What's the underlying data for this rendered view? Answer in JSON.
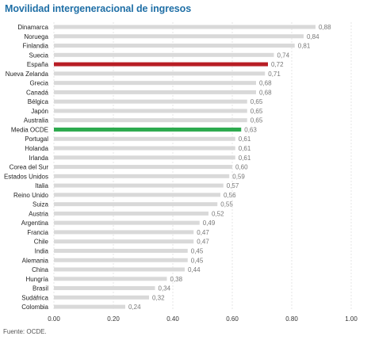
{
  "title": "Movilidad intergeneracional de ingresos",
  "source": "Fuente: OCDE.",
  "colors": {
    "bar": "#d9d9d9",
    "highlight_spain": "#b81e25",
    "highlight_oecd": "#2daa4e",
    "title": "#1f6fa6"
  },
  "chart_data": {
    "type": "bar",
    "orientation": "horizontal",
    "title": "Movilidad intergeneracional de ingresos",
    "xlabel": "",
    "ylabel": "",
    "xlim": [
      0,
      1.0
    ],
    "xticks": [
      "0.00",
      "0.20",
      "0.40",
      "0.60",
      "0.80",
      "1.00"
    ],
    "grid": true,
    "categories": [
      "Dinamarca",
      "Noruega",
      "Finlandia",
      "Suecia",
      "España",
      "Nueva Zelanda",
      "Grecia",
      "Canadá",
      "Bélgica",
      "Japón",
      "Australia",
      "Media OCDE",
      "Portugal",
      "Holanda",
      "Irlanda",
      "Corea del Sur",
      "Estados Unidos",
      "Italia",
      "Reino Unido",
      "Suiza",
      "Austria",
      "Argentina",
      "Francia",
      "Chile",
      "India",
      "Alemania",
      "China",
      "Hungría",
      "Brasil",
      "Sudáfrica",
      "Colombia"
    ],
    "values": [
      0.88,
      0.84,
      0.81,
      0.74,
      0.72,
      0.71,
      0.68,
      0.68,
      0.65,
      0.65,
      0.65,
      0.63,
      0.61,
      0.61,
      0.61,
      0.6,
      0.59,
      0.57,
      0.56,
      0.55,
      0.52,
      0.49,
      0.47,
      0.47,
      0.45,
      0.45,
      0.44,
      0.38,
      0.34,
      0.32,
      0.24
    ],
    "value_labels": [
      "0,88",
      "0,84",
      "0,81",
      "0,74",
      "0,72",
      "0,71",
      "0,68",
      "0,68",
      "0,65",
      "0,65",
      "0,65",
      "0,63",
      "0,61",
      "0,61",
      "0,61",
      "0,60",
      "0,59",
      "0,57",
      "0,56",
      "0,55",
      "0,52",
      "0,49",
      "0,47",
      "0,47",
      "0,45",
      "0,45",
      "0,44",
      "0,38",
      "0,34",
      "0,32",
      "0,24"
    ],
    "highlighted": {
      "España": "#b81e25",
      "Media OCDE": "#2daa4e"
    }
  }
}
